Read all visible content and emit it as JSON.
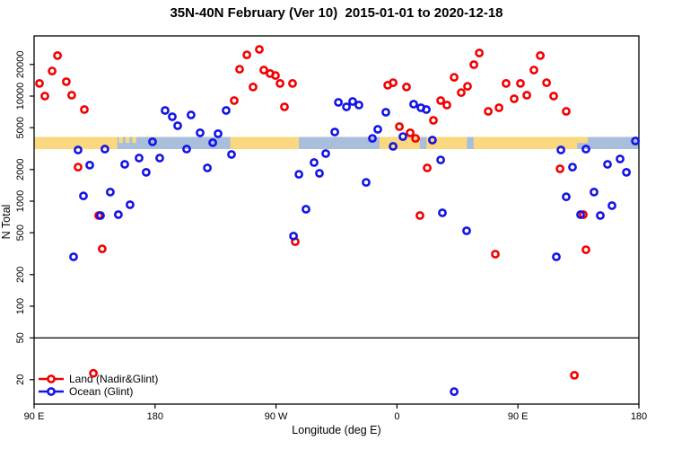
{
  "title": "35N-40N February (Ver 10)  2015-01-01 to 2020-12-18",
  "chart_data": {
    "type": "scatter",
    "title": "35N-40N February (Ver 10)  2015-01-01 to 2020-12-18",
    "xlabel": "Longitude (deg E)",
    "ylabel": "N Total",
    "x_axis": {
      "note": "longitude wraps eastward: 90E -> 180 -> 90W -> 0 -> 90E -> 180 (450 deg total span)",
      "ticks_deg_from_left": [
        0,
        90,
        180,
        270,
        360,
        450
      ],
      "tick_labels": [
        "90 E",
        "180",
        "90 W",
        "0",
        "90 E",
        "180"
      ]
    },
    "y_axis": {
      "scale": "log10",
      "ticks": [
        20,
        50,
        100,
        200,
        500,
        1000,
        2000,
        5000,
        10000,
        20000
      ],
      "range": [
        13,
        35000
      ]
    },
    "reference_line_n": 50,
    "land_ocean_strip": {
      "description": "horizontal map strip of the 35N-40N latitude band: land vs ocean by longitude",
      "land_color": "#F9D87F",
      "ocean_color": "#A8BEDA",
      "center_n": 3600,
      "segments": [
        {
          "surface": "land",
          "from_deg": 0,
          "to_deg": 62
        },
        {
          "surface": "land",
          "from_deg": 63,
          "to_deg": 66,
          "partial": "top"
        },
        {
          "surface": "land",
          "from_deg": 68,
          "to_deg": 71,
          "partial": "top"
        },
        {
          "surface": "land",
          "from_deg": 73,
          "to_deg": 76,
          "partial": "top"
        },
        {
          "surface": "land",
          "from_deg": 146,
          "to_deg": 197
        },
        {
          "surface": "land",
          "from_deg": 257,
          "to_deg": 404
        },
        {
          "surface": "ocean",
          "from_deg": 287,
          "to_deg": 292
        },
        {
          "surface": "ocean",
          "from_deg": 322,
          "to_deg": 327
        },
        {
          "surface": "land",
          "from_deg": 404,
          "to_deg": 412,
          "partial": "top"
        }
      ]
    },
    "legend": {
      "position": "bottom-left",
      "entries": [
        {
          "label": "Land (Nadir&Glint)",
          "color": "#F40000"
        },
        {
          "label": "Ocean (Glint)",
          "color": "#1414E6"
        }
      ]
    },
    "series": [
      {
        "name": "Land (Nadir&Glint)",
        "color": "#F40000",
        "points": [
          [
            17.4,
            24300
          ],
          [
            13.4,
            17300
          ],
          [
            4.0,
            13200
          ],
          [
            24.0,
            13700
          ],
          [
            8.0,
            10000
          ],
          [
            28.0,
            10200
          ],
          [
            37.4,
            7450
          ],
          [
            32.7,
            2110
          ],
          [
            48.1,
            730
          ],
          [
            50.7,
            352
          ],
          [
            44.1,
            23
          ],
          [
            158.3,
            24700
          ],
          [
            167.6,
            27800
          ],
          [
            152.9,
            18000
          ],
          [
            170.9,
            17700
          ],
          [
            175.6,
            16400
          ],
          [
            179.6,
            15700
          ],
          [
            162.9,
            12200
          ],
          [
            183.0,
            13200
          ],
          [
            192.3,
            13200
          ],
          [
            148.9,
            9060
          ],
          [
            186.3,
            7890
          ],
          [
            194.3,
            412
          ],
          [
            331.2,
            25700
          ],
          [
            327.2,
            19900
          ],
          [
            312.5,
            15100
          ],
          [
            322.5,
            12400
          ],
          [
            317.8,
            10800
          ],
          [
            263.1,
            12700
          ],
          [
            267.1,
            13400
          ],
          [
            277.1,
            12200
          ],
          [
            302.5,
            9060
          ],
          [
            307.1,
            8220
          ],
          [
            337.9,
            7160
          ],
          [
            345.9,
            7750
          ],
          [
            297.1,
            5880
          ],
          [
            271.8,
            5120
          ],
          [
            279.8,
            4470
          ],
          [
            283.8,
            3960
          ],
          [
            292.5,
            2070
          ],
          [
            287.1,
            730
          ],
          [
            343.2,
            313
          ],
          [
            376.6,
            24300
          ],
          [
            371.9,
            17700
          ],
          [
            351.2,
            13200
          ],
          [
            361.9,
            13200
          ],
          [
            357.2,
            9420
          ],
          [
            366.6,
            10200
          ],
          [
            381.3,
            13400
          ],
          [
            386.6,
            10000
          ],
          [
            395.9,
            7160
          ],
          [
            391.3,
            2030
          ],
          [
            408.6,
            745
          ],
          [
            410.6,
            345
          ],
          [
            402.0,
            22
          ]
        ]
      },
      {
        "name": "Ocean (Glint)",
        "color": "#1414E6",
        "points": [
          [
            97.5,
            7300
          ],
          [
            102.8,
            6360
          ],
          [
            116.8,
            6620
          ],
          [
            106.8,
            5220
          ],
          [
            88.1,
            3670
          ],
          [
            113.5,
            3130
          ],
          [
            32.7,
            3070
          ],
          [
            52.7,
            3130
          ],
          [
            41.4,
            2200
          ],
          [
            93.5,
            2570
          ],
          [
            67.4,
            2240
          ],
          [
            78.1,
            2570
          ],
          [
            83.4,
            1880
          ],
          [
            36.7,
            1120
          ],
          [
            56.7,
            1220
          ],
          [
            71.4,
            925
          ],
          [
            49.4,
            730
          ],
          [
            62.7,
            745
          ],
          [
            29.4,
            295
          ],
          [
            142.9,
            7300
          ],
          [
            226.4,
            8710
          ],
          [
            232.4,
            7890
          ],
          [
            123.5,
            4470
          ],
          [
            136.9,
            4380
          ],
          [
            132.9,
            3600
          ],
          [
            146.9,
            2780
          ],
          [
            128.9,
            2070
          ],
          [
            223.7,
            4550
          ],
          [
            217.0,
            2840
          ],
          [
            208.3,
            2330
          ],
          [
            212.3,
            1840
          ],
          [
            197.0,
            1800
          ],
          [
            202.3,
            837
          ],
          [
            193.0,
            465
          ],
          [
            237.0,
            8890
          ],
          [
            241.7,
            8220
          ],
          [
            261.7,
            7020
          ],
          [
            282.4,
            8380
          ],
          [
            287.8,
            7750
          ],
          [
            291.8,
            7450
          ],
          [
            255.7,
            4830
          ],
          [
            251.7,
            3960
          ],
          [
            274.4,
            4120
          ],
          [
            267.1,
            3320
          ],
          [
            296.4,
            3810
          ],
          [
            302.5,
            2470
          ],
          [
            247.0,
            1510
          ],
          [
            303.8,
            775
          ],
          [
            321.8,
            522
          ],
          [
            312.5,
            15.4
          ],
          [
            447.4,
            3740
          ],
          [
            392.0,
            3070
          ],
          [
            410.6,
            3130
          ],
          [
            426.6,
            2240
          ],
          [
            436.0,
            2520
          ],
          [
            440.7,
            1880
          ],
          [
            400.6,
            2110
          ],
          [
            395.9,
            1100
          ],
          [
            416.6,
            1220
          ],
          [
            430.0,
            906
          ],
          [
            421.3,
            730
          ],
          [
            406.6,
            745
          ],
          [
            388.6,
            295
          ]
        ]
      }
    ]
  }
}
